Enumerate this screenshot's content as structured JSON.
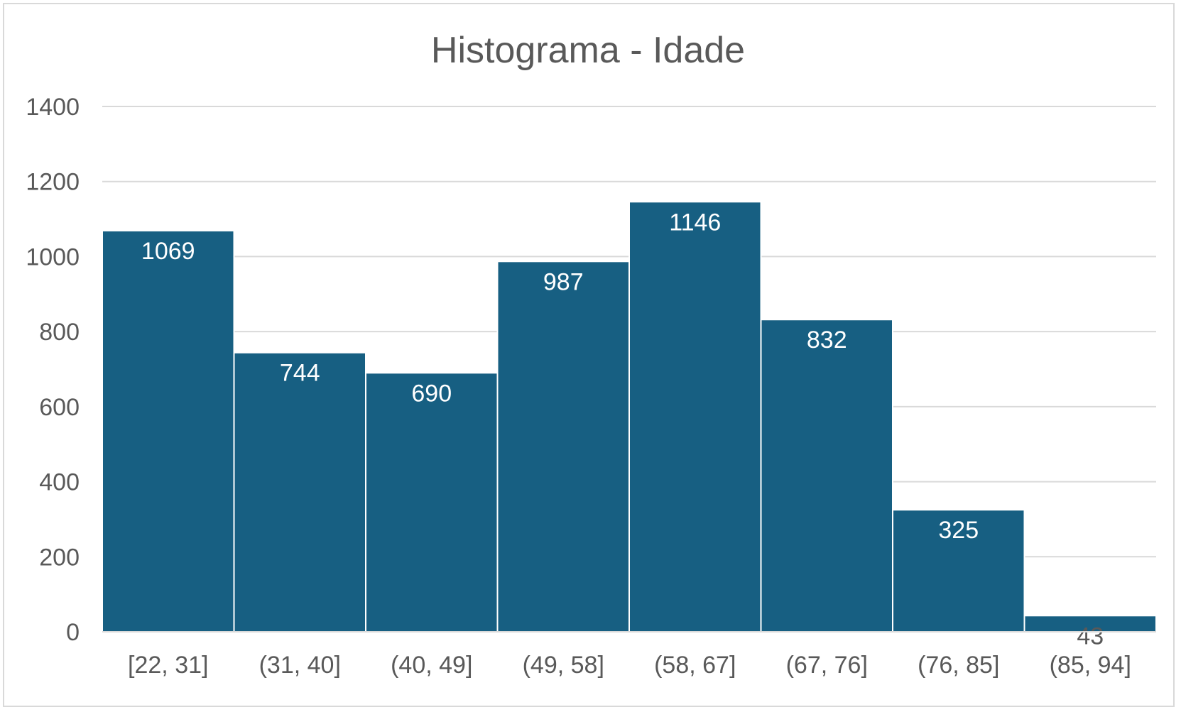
{
  "chart_data": {
    "type": "bar",
    "title": "Histograma - Idade",
    "xlabel": "",
    "ylabel": "",
    "categories": [
      "[22, 31]",
      "(31, 40]",
      "(40, 49]",
      "(49, 58]",
      "(58, 67]",
      "(67, 76]",
      "(76, 85]",
      "(85, 94]"
    ],
    "values": [
      1069,
      744,
      690,
      987,
      1146,
      832,
      325,
      43
    ],
    "ylim": [
      0,
      1400
    ],
    "yticks": [
      0,
      200,
      400,
      600,
      800,
      1000,
      1200,
      1400
    ],
    "grid": true,
    "legend": "none",
    "colors": {
      "bar": "#175f82",
      "label": "#ffffff",
      "text": "#595959",
      "grid": "#d9d9d9"
    }
  }
}
